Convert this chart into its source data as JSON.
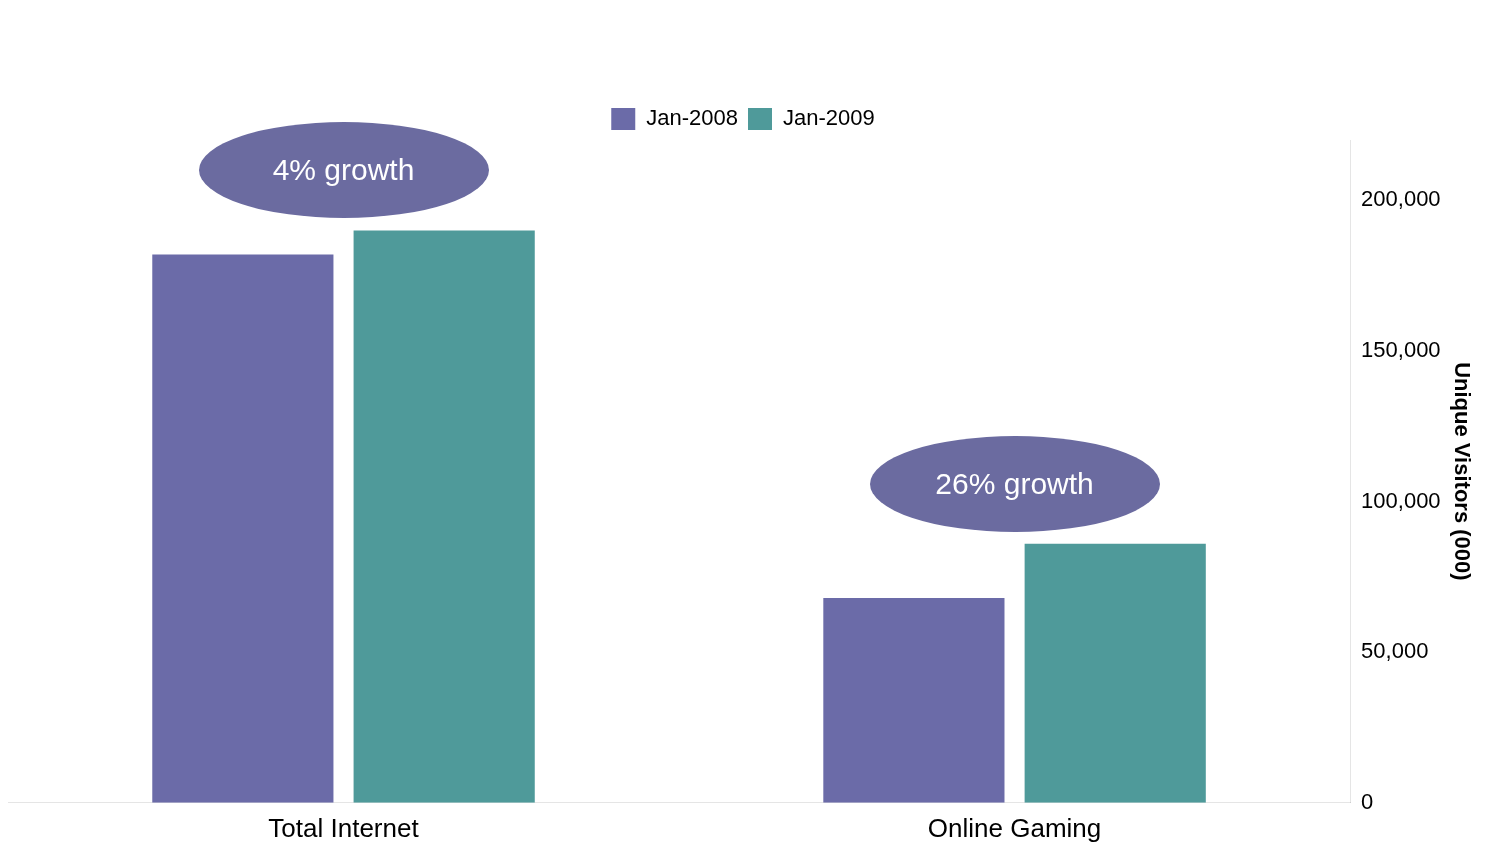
{
  "chart_data": {
    "type": "bar",
    "categories": [
      "Total Internet",
      "Online Gaming"
    ],
    "series": [
      {
        "name": "Jan-2008",
        "color": "#6b6ba8",
        "values": [
          182000,
          68000
        ]
      },
      {
        "name": "Jan-2009",
        "color": "#4f9a9a",
        "values": [
          190000,
          86000
        ]
      }
    ],
    "ylabel": "Unique Visitors (000)",
    "ylim": [
      0,
      220000
    ],
    "yticks": [
      0,
      {
        "value": 50000,
        "label": "50,000"
      },
      {
        "value": 100000,
        "label": "100,000"
      },
      {
        "value": 150000,
        "label": "150,000"
      },
      {
        "value": 200000,
        "label": "200,000"
      }
    ],
    "annotations": [
      "4% growth",
      "26% growth"
    ],
    "grid": false,
    "legend": "top"
  }
}
